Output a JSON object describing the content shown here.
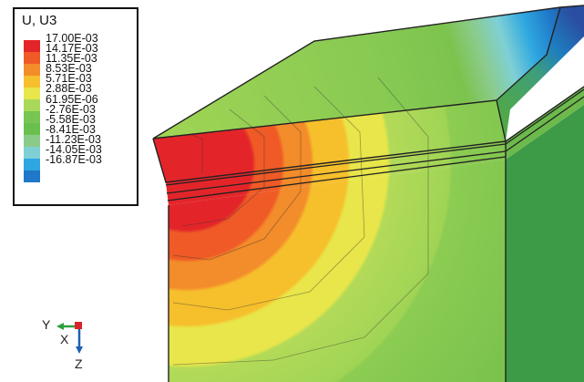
{
  "legend": {
    "title": "U, U3",
    "values": [
      "17.00E-03",
      "14.17E-03",
      "11.35E-03",
      "8.53E-03",
      "5.71E-03",
      "2.88E-03",
      "61.95E-06",
      "-2.76E-03",
      "-5.58E-03",
      "-8.41E-03",
      "-11.23E-03",
      "-14.05E-03",
      "-16.87E-03"
    ],
    "colors": [
      "#e3252a",
      "#ef5a26",
      "#f38c2a",
      "#f6bf2c",
      "#e8e64a",
      "#a9d85a",
      "#78c553",
      "#6ac04e",
      "#8bcb8a",
      "#7fd0d5",
      "#2ea7e0",
      "#1f78c8",
      "#2a4ea2"
    ]
  },
  "triad": {
    "y": "Y",
    "x": "X",
    "z": "Z"
  }
}
